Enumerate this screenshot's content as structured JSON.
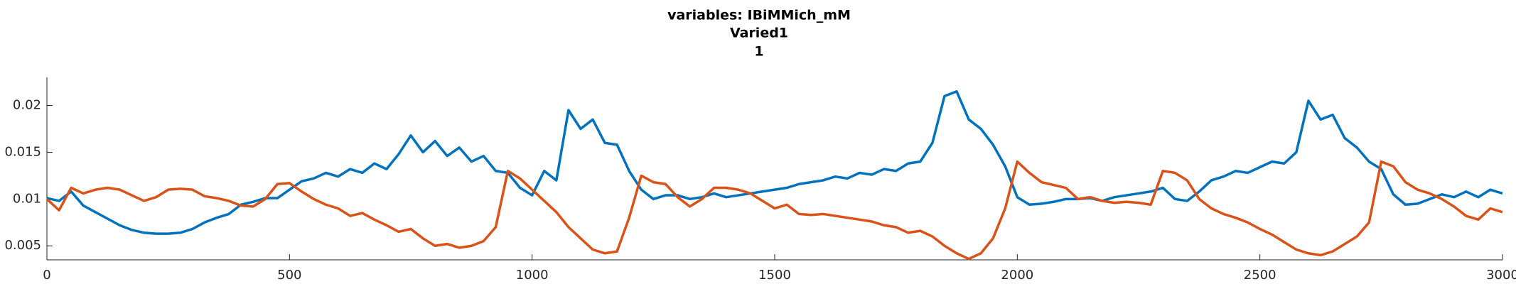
{
  "chart_data": {
    "type": "line",
    "title_lines": [
      "variables: IBiMMich_mM",
      "Varied1",
      "1"
    ],
    "x": [
      0,
      25,
      50,
      75,
      100,
      125,
      150,
      175,
      200,
      225,
      250,
      275,
      300,
      325,
      350,
      375,
      400,
      425,
      450,
      475,
      500,
      525,
      550,
      575,
      600,
      625,
      650,
      675,
      700,
      725,
      750,
      775,
      800,
      825,
      850,
      875,
      900,
      925,
      950,
      975,
      1000,
      1025,
      1050,
      1075,
      1100,
      1125,
      1150,
      1175,
      1200,
      1225,
      1250,
      1275,
      1300,
      1325,
      1350,
      1375,
      1400,
      1425,
      1450,
      1475,
      1500,
      1525,
      1550,
      1575,
      1600,
      1625,
      1650,
      1675,
      1700,
      1725,
      1750,
      1775,
      1800,
      1825,
      1850,
      1875,
      1900,
      1925,
      1950,
      1975,
      2000,
      2025,
      2050,
      2075,
      2100,
      2125,
      2150,
      2175,
      2200,
      2225,
      2250,
      2275,
      2300,
      2325,
      2350,
      2375,
      2400,
      2425,
      2450,
      2475,
      2500,
      2525,
      2550,
      2575,
      2600,
      2625,
      2650,
      2675,
      2700,
      2725,
      2750,
      2775,
      2800,
      2825,
      2850,
      2875,
      2900,
      2925,
      2950,
      2975,
      3000
    ],
    "series": [
      {
        "color": "#0072BD",
        "values": [
          0.0101,
          0.0098,
          0.0108,
          0.0093,
          0.0086,
          0.0079,
          0.0072,
          0.0067,
          0.0064,
          0.0063,
          0.0063,
          0.0064,
          0.0068,
          0.0075,
          0.008,
          0.0084,
          0.0094,
          0.0097,
          0.0101,
          0.0101,
          0.011,
          0.0119,
          0.0122,
          0.0128,
          0.0124,
          0.0132,
          0.0128,
          0.0138,
          0.0132,
          0.0148,
          0.0168,
          0.015,
          0.0162,
          0.0146,
          0.0155,
          0.014,
          0.0146,
          0.013,
          0.0128,
          0.0112,
          0.0104,
          0.013,
          0.012,
          0.0195,
          0.0175,
          0.0185,
          0.016,
          0.0158,
          0.013,
          0.011,
          0.01,
          0.0104,
          0.0104,
          0.01,
          0.0102,
          0.0106,
          0.0102,
          0.0104,
          0.0106,
          0.0108,
          0.011,
          0.0112,
          0.0116,
          0.0118,
          0.012,
          0.0124,
          0.0122,
          0.0128,
          0.0126,
          0.0132,
          0.013,
          0.0138,
          0.014,
          0.016,
          0.021,
          0.0215,
          0.0185,
          0.0175,
          0.0158,
          0.0135,
          0.0102,
          0.0094,
          0.0095,
          0.0097,
          0.01,
          0.01,
          0.0101,
          0.0098,
          0.0102,
          0.0104,
          0.0106,
          0.0108,
          0.0112,
          0.01,
          0.0098,
          0.0108,
          0.012,
          0.0124,
          0.013,
          0.0128,
          0.0134,
          0.014,
          0.0138,
          0.015,
          0.0205,
          0.0185,
          0.019,
          0.0165,
          0.0155,
          0.014,
          0.0132,
          0.0105,
          0.0094,
          0.0095,
          0.01,
          0.0105,
          0.0102,
          0.0108,
          0.0102,
          0.011,
          0.0106
        ]
      },
      {
        "color": "#D95319",
        "values": [
          0.01,
          0.0088,
          0.0112,
          0.0106,
          0.011,
          0.0112,
          0.011,
          0.0104,
          0.0098,
          0.0102,
          0.011,
          0.0111,
          0.011,
          0.0103,
          0.0101,
          0.0098,
          0.0093,
          0.0092,
          0.01,
          0.0116,
          0.0117,
          0.0108,
          0.01,
          0.0094,
          0.009,
          0.0082,
          0.0085,
          0.0078,
          0.0072,
          0.0065,
          0.0068,
          0.0058,
          0.005,
          0.0052,
          0.0048,
          0.005,
          0.0055,
          0.007,
          0.013,
          0.0122,
          0.011,
          0.0098,
          0.0086,
          0.007,
          0.0058,
          0.0046,
          0.0042,
          0.0044,
          0.008,
          0.0125,
          0.0118,
          0.0116,
          0.0102,
          0.0092,
          0.01,
          0.0112,
          0.0112,
          0.011,
          0.0106,
          0.0098,
          0.009,
          0.0094,
          0.0084,
          0.0083,
          0.0084,
          0.0082,
          0.008,
          0.0078,
          0.0076,
          0.0072,
          0.007,
          0.0064,
          0.0066,
          0.006,
          0.005,
          0.0042,
          0.0036,
          0.0042,
          0.0058,
          0.009,
          0.014,
          0.0128,
          0.0118,
          0.0115,
          0.0112,
          0.01,
          0.0102,
          0.0098,
          0.0096,
          0.0097,
          0.0096,
          0.0094,
          0.013,
          0.0128,
          0.012,
          0.01,
          0.009,
          0.0084,
          0.008,
          0.0075,
          0.0068,
          0.0062,
          0.0054,
          0.0046,
          0.0042,
          0.004,
          0.0044,
          0.0052,
          0.006,
          0.0075,
          0.014,
          0.0135,
          0.0118,
          0.011,
          0.0106,
          0.01,
          0.0092,
          0.0082,
          0.0078,
          0.009,
          0.0086
        ]
      }
    ],
    "xlim": [
      0,
      3000
    ],
    "xticks": [
      0,
      500,
      1000,
      1500,
      2000,
      2500,
      3000
    ],
    "ylim": [
      0.0035,
      0.023
    ],
    "yticks": [
      0.005,
      0.01,
      0.015,
      0.02
    ]
  }
}
